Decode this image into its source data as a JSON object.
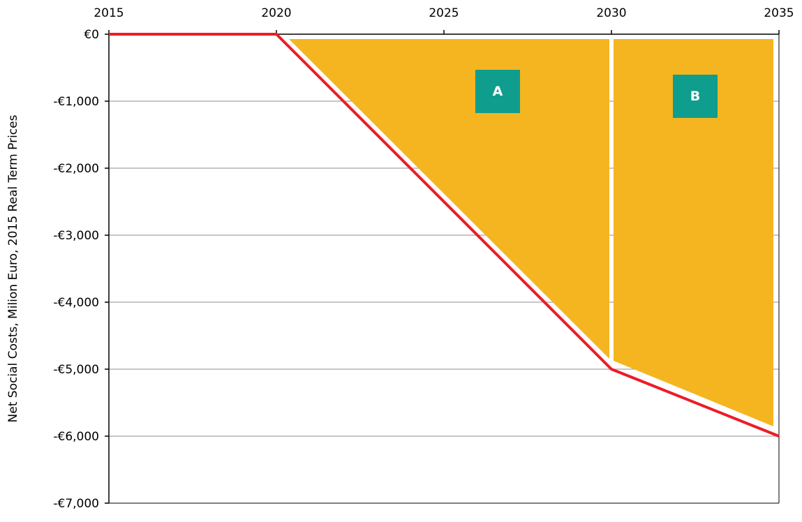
{
  "chart_data": {
    "type": "line",
    "title": "",
    "xlabel": "",
    "ylabel": "Net Social Costs, Milion Euro, 2015 Real Term Prices",
    "x_ticks": [
      "2015",
      "2020",
      "2025",
      "2030",
      "2035"
    ],
    "y_ticks": [
      "€0",
      "-€1,000",
      "-€2,000",
      "-€3,000",
      "-€4,000",
      "-€5,000",
      "-€6,000",
      "-€7,000"
    ],
    "xlim": [
      2015,
      2035
    ],
    "ylim": [
      -7000,
      0
    ],
    "x_axis_position": "top",
    "grid": true,
    "series": [
      {
        "x": [
          2015,
          2020,
          2030,
          2035
        ],
        "values": [
          0,
          0,
          -5000,
          -6000
        ],
        "color": "#ee1c25"
      }
    ],
    "areas": [
      {
        "label": "A",
        "x_range": [
          2020,
          2030
        ],
        "color": "#f5b520"
      },
      {
        "label": "B",
        "x_range": [
          2030,
          2035
        ],
        "color": "#f5b520"
      }
    ],
    "label_box_color": "#0f9d8e"
  }
}
